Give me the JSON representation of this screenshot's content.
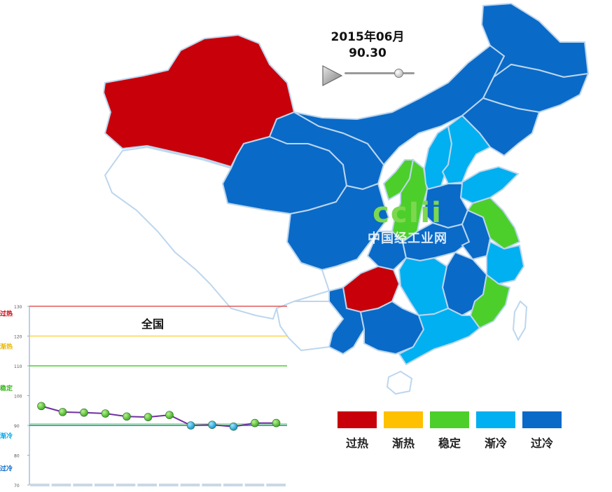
{
  "header": {
    "date": "2015年06月",
    "index_value": "90.30"
  },
  "slider": {
    "value": 0.8
  },
  "watermark": {
    "logo_text": "ccIii",
    "org_name": "中国经工业网"
  },
  "colors": {
    "overheat": "#c8000a",
    "warming": "#ffc000",
    "stable": "#4ccf2b",
    "cooling": "#00b0f0",
    "overcool": "#0a6ac8",
    "border": "#bcd6ee",
    "line": "#7030a0"
  },
  "map": {
    "regions": [
      {
        "name": "新疆",
        "status": "overheat"
      },
      {
        "name": "西藏",
        "status": "blank"
      },
      {
        "name": "青海",
        "status": "overcool"
      },
      {
        "name": "甘肃",
        "status": "overcool"
      },
      {
        "name": "内蒙古",
        "status": "overcool"
      },
      {
        "name": "黑龙江",
        "status": "overcool"
      },
      {
        "name": "吉林",
        "status": "overcool"
      },
      {
        "name": "辽宁",
        "status": "overcool"
      },
      {
        "name": "宁夏",
        "status": "stable"
      },
      {
        "name": "陕西",
        "status": "stable"
      },
      {
        "name": "山西",
        "status": "cooling"
      },
      {
        "name": "河北",
        "status": "cooling"
      },
      {
        "name": "山东",
        "status": "cooling"
      },
      {
        "name": "江苏",
        "status": "stable"
      },
      {
        "name": "四川",
        "status": "overcool"
      },
      {
        "name": "重庆",
        "status": "overcool"
      },
      {
        "name": "贵州",
        "status": "overheat"
      },
      {
        "name": "湖南",
        "status": "cooling"
      },
      {
        "name": "江西",
        "status": "overcool"
      },
      {
        "name": "福建",
        "status": "stable"
      },
      {
        "name": "浙江",
        "status": "cooling"
      },
      {
        "name": "广东",
        "status": "cooling"
      },
      {
        "name": "广西",
        "status": "overcool"
      },
      {
        "name": "云南",
        "status": "overcool"
      },
      {
        "name": "海南",
        "status": "blank"
      },
      {
        "name": "台湾",
        "status": "blank"
      }
    ]
  },
  "legend": {
    "items": [
      {
        "label": "过热",
        "color_key": "overheat"
      },
      {
        "label": "渐热",
        "color_key": "warming"
      },
      {
        "label": "稳定",
        "color_key": "stable"
      },
      {
        "label": "渐冷",
        "color_key": "cooling"
      },
      {
        "label": "过冷",
        "color_key": "overcool"
      }
    ]
  },
  "chart_data": {
    "type": "line",
    "title": "全国",
    "ylim": [
      70,
      130
    ],
    "yticks": [
      70,
      80,
      90,
      100,
      110,
      120,
      130
    ],
    "zone_labels": [
      {
        "label": "过热",
        "y": 127.5,
        "color": "#c8000a"
      },
      {
        "label": "渐热",
        "y": 116.5,
        "color": "#e8b800"
      },
      {
        "label": "稳定",
        "y": 102.5,
        "color": "#3ab51f"
      },
      {
        "label": "渐冷",
        "y": 86.5,
        "color": "#00a8e8"
      },
      {
        "label": "过冷",
        "y": 75.5,
        "color": "#0a6ac8"
      }
    ],
    "thresholds": [
      {
        "y": 130,
        "color": "#e05a5a"
      },
      {
        "y": 120,
        "color": "#ffd24a"
      },
      {
        "y": 110,
        "color": "#4ccf2b"
      },
      {
        "y": 90,
        "color": "#3a74c2"
      }
    ],
    "stable_band_line": {
      "y": 90.5,
      "color": "#7fe07a"
    },
    "x_count": 12,
    "series": [
      {
        "values": [
          96.5,
          94.5,
          94.3,
          94.0,
          93.0,
          92.8,
          93.5,
          90.0,
          90.2,
          89.6,
          90.8,
          90.8
        ],
        "point_status": [
          "stable",
          "stable",
          "stable",
          "stable",
          "stable",
          "stable",
          "stable",
          "cooling",
          "cooling",
          "cooling",
          "stable",
          "stable"
        ]
      }
    ],
    "grid": false,
    "legend": "none"
  }
}
